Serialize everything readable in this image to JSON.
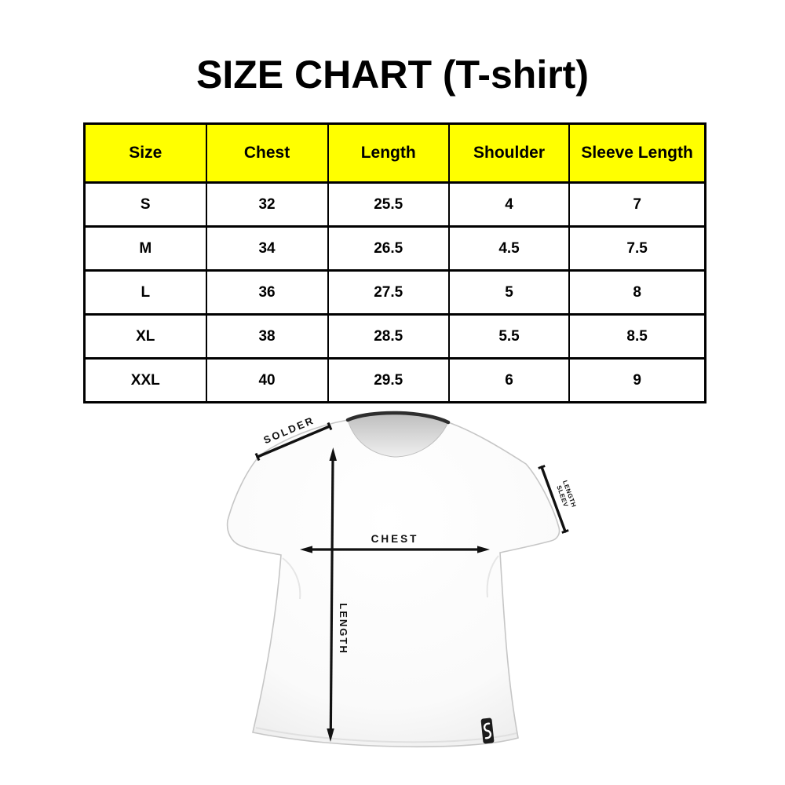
{
  "title": "SIZE CHART (T-shirt)",
  "table": {
    "headers": [
      "Size",
      "Chest",
      "Length",
      "Shoulder",
      "Sleeve Length"
    ],
    "rows": [
      [
        "S",
        "32",
        "25.5",
        "4",
        "7"
      ],
      [
        "M",
        "34",
        "26.5",
        "4.5",
        "7.5"
      ],
      [
        "L",
        "36",
        "27.5",
        "5",
        "8"
      ],
      [
        "XL",
        "38",
        "28.5",
        "5.5",
        "8.5"
      ],
      [
        "XXL",
        "40",
        "29.5",
        "6",
        "9"
      ]
    ],
    "header_bg": "#FFFF00",
    "border_color": "#000000"
  },
  "diagram": {
    "labels": {
      "shoulder": "SOLDER",
      "chest": "CHEST",
      "length": "LENGTH",
      "sleeve_line1": "SLEEV",
      "sleeve_line2": "LENGTH"
    },
    "line_color": "#111111",
    "shirt_color": "#fbfbfb",
    "collar_color": "#2e2e2e",
    "tag_color": "#1c1c1c"
  }
}
